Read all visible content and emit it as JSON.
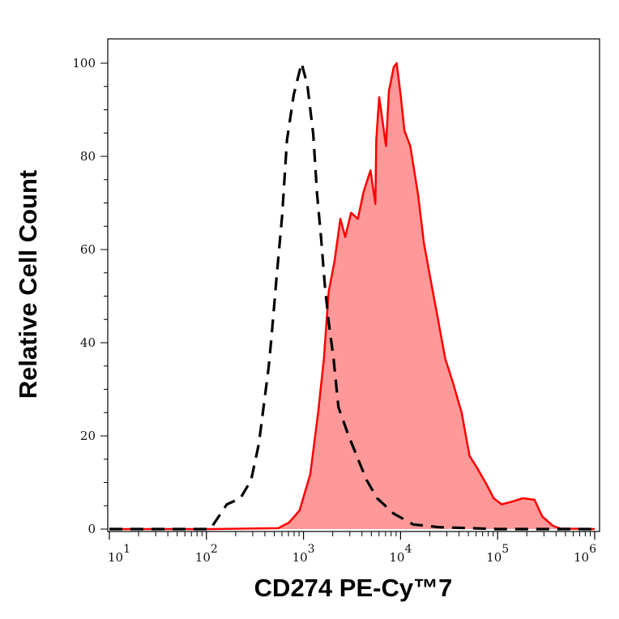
{
  "chart_data": {
    "type": "area",
    "title": "",
    "xlabel": "CD274 PE-Cy™7",
    "ylabel": "Relative Cell Count",
    "x_scale": "log",
    "xlim": [
      10,
      1000000
    ],
    "ylim": [
      0,
      100
    ],
    "grid": false,
    "x_ticks": [
      {
        "base": "10",
        "exp": "1",
        "value": 10
      },
      {
        "base": "10",
        "exp": "2",
        "value": 100
      },
      {
        "base": "10",
        "exp": "3",
        "value": 1000
      },
      {
        "base": "10",
        "exp": "4",
        "value": 10000
      },
      {
        "base": "10",
        "exp": "5",
        "value": 100000
      },
      {
        "base": "10",
        "exp": "6",
        "value": 1000000
      }
    ],
    "y_ticks": [
      "0",
      "20",
      "40",
      "60",
      "80",
      "100"
    ],
    "colors": {
      "stained_line": "#ff0000",
      "stained_fill": "#ff9999",
      "control_line": "#000000"
    },
    "series": [
      {
        "style": "dashed-black-unfilled",
        "log10_x": [
          1.0,
          2.04,
          2.21,
          2.35,
          2.46,
          2.54,
          2.6,
          2.64,
          2.67,
          2.72,
          2.78,
          2.83,
          2.9,
          2.98,
          3.04,
          3.1,
          3.14,
          3.18,
          3.22,
          3.26,
          3.31,
          3.36,
          3.46,
          3.56,
          3.65,
          3.76,
          3.93,
          4.13,
          4.4,
          5.0,
          6.0
        ],
        "y": [
          0,
          0,
          5.3,
          6.6,
          10.5,
          18.3,
          28.1,
          34.6,
          41.2,
          53.5,
          67.2,
          83.5,
          93.3,
          100,
          95.3,
          84.8,
          71.8,
          62.7,
          52.2,
          44.4,
          36.6,
          26.2,
          20.3,
          15.1,
          10.5,
          6.6,
          3.3,
          1.0,
          0.4,
          0,
          0
        ]
      },
      {
        "style": "solid-red-filled",
        "log10_x": [
          1.0,
          2.04,
          2.74,
          2.85,
          2.96,
          3.07,
          3.15,
          3.21,
          3.26,
          3.32,
          3.38,
          3.43,
          3.49,
          3.56,
          3.62,
          3.69,
          3.74,
          3.75,
          3.78,
          3.82,
          3.85,
          3.88,
          3.93,
          3.96,
          4.0,
          4.04,
          4.1,
          4.14,
          4.18,
          4.24,
          4.31,
          4.38,
          4.46,
          4.54,
          4.63,
          4.71,
          4.79,
          4.88,
          4.96,
          5.04,
          5.15,
          5.26,
          5.38,
          5.46,
          5.57,
          5.65,
          6.0
        ],
        "y": [
          0,
          0,
          0.2,
          1.4,
          4,
          11.8,
          24.9,
          36.6,
          51,
          57.5,
          66.6,
          62.7,
          67.9,
          66.6,
          72.5,
          77,
          69.8,
          83.5,
          92.7,
          86.8,
          82.2,
          94,
          99.2,
          100,
          93.3,
          85.5,
          82.2,
          77,
          71.8,
          61.4,
          53.5,
          45.7,
          36.6,
          31.4,
          24.9,
          15.7,
          13.1,
          9.8,
          6.6,
          5.3,
          5.9,
          6.6,
          6.3,
          2.7,
          0.7,
          0.1,
          0
        ]
      }
    ]
  }
}
